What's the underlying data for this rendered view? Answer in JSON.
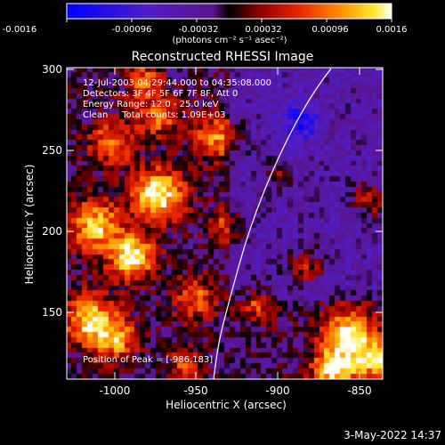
{
  "colorbar": {
    "ticks": [
      "-0.0016",
      "-0.00096",
      "-0.00032",
      "0.00032",
      "0.00096",
      "0.0016"
    ],
    "unit_label": "(photons cm⁻² s⁻¹ asec⁻²)",
    "range": [
      -0.0016,
      0.0016
    ]
  },
  "plot": {
    "title": "Reconstructed RHESSI Image",
    "xlabel": "Heliocentric X (arcsec)",
    "ylabel": "Heliocentric Y (arcsec)",
    "xticks": [
      "-1000",
      "-950",
      "-900",
      "-850"
    ],
    "yticks": [
      "300",
      "250",
      "200",
      "150"
    ],
    "xlim": [
      -1030,
      -838
    ],
    "ylim": [
      106,
      301
    ]
  },
  "info": {
    "line1": "12-Jul-2003 04:29:44.000 to 04:35:08.000",
    "line2": "Detectors: 3F 4F 5F 6F 7F 8F, Att 0",
    "line3": "Energy Range: 12.0 - 25.0 keV",
    "line4": "Clean     Total counts: 1.09E+03",
    "peak": "Position of Peak = [-986,183]"
  },
  "footer": {
    "timestamp": "3-May-2022 14:37"
  },
  "colors": {
    "background": "#000000",
    "foreground": "#ffffff",
    "limb_line": "#ffffff"
  }
}
